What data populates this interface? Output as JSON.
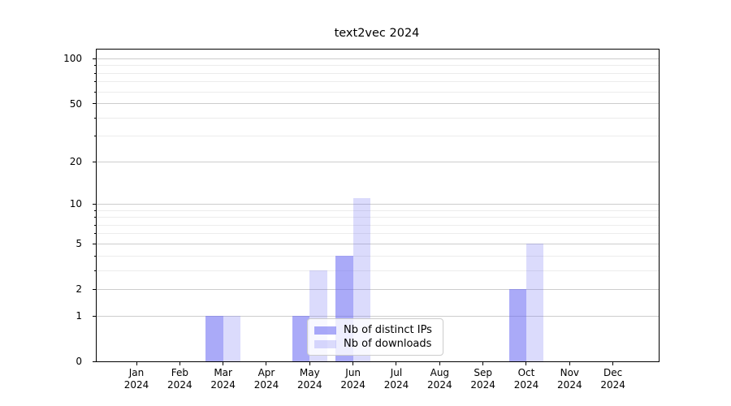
{
  "title": "text2vec 2024",
  "chart_data": {
    "type": "bar",
    "title": "text2vec 2024",
    "categories": [
      "Jan",
      "Feb",
      "Mar",
      "Apr",
      "May",
      "Jun",
      "Jul",
      "Aug",
      "Sep",
      "Oct",
      "Nov",
      "Dec"
    ],
    "year_label": "2024",
    "series": [
      {
        "name": "Nb of distinct IPs",
        "color": "rgba(104,104,242,0.56)",
        "values": [
          0,
          0,
          1,
          0,
          1,
          4,
          0,
          0,
          0,
          2,
          0,
          0
        ]
      },
      {
        "name": "Nb of downloads",
        "color": "rgba(104,104,242,0.24)",
        "values": [
          0,
          0,
          1,
          0,
          3,
          11,
          0,
          0,
          0,
          5,
          0,
          0
        ]
      }
    ],
    "yscale": "log1p",
    "ylim": [
      0,
      115
    ],
    "y_axis": {
      "major_ticks": [
        0,
        1,
        2,
        5,
        10,
        20,
        50,
        100
      ],
      "major_tick_labels": [
        "0",
        "1",
        "2",
        "5",
        "10",
        "20",
        "50",
        "100"
      ],
      "minor_gridlines": [
        3,
        4,
        6,
        7,
        8,
        9,
        30,
        40,
        60,
        70,
        80,
        90
      ]
    },
    "grid": true,
    "legend_position": "lower center",
    "colors": {
      "background": "#ffffff",
      "spine": "#000000",
      "grid_major": "#cdcdcd",
      "grid_minor": "#ececec",
      "text": "#000000"
    }
  }
}
